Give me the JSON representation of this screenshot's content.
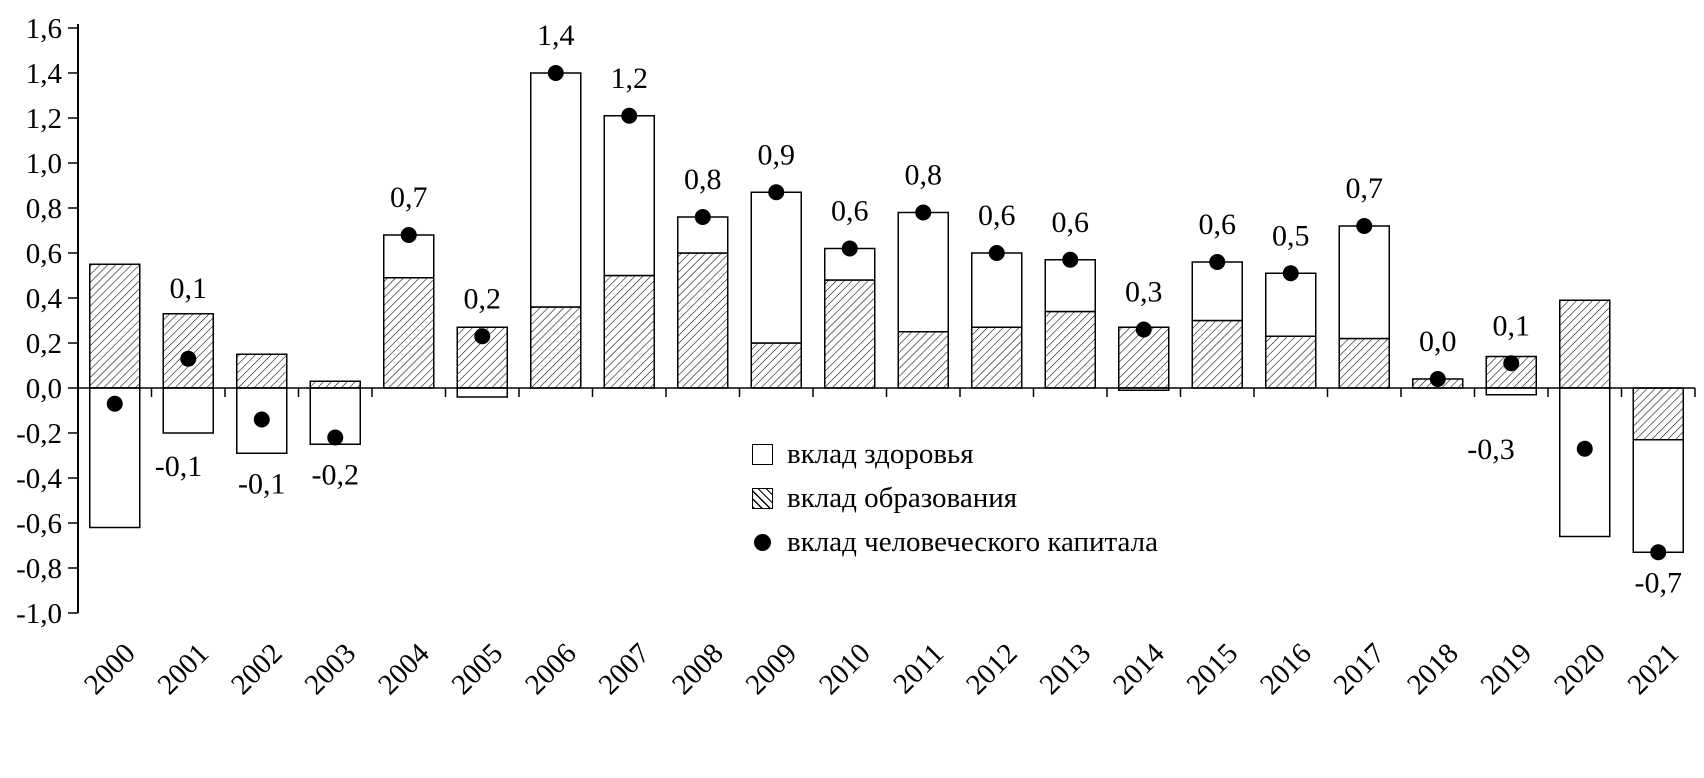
{
  "chart_data": {
    "type": "bar",
    "subtype": "stacked-bars-with-scatter-overlay",
    "title": "",
    "xlabel": "",
    "ylabel": "",
    "ylim": [
      -1.0,
      1.6
    ],
    "ytick_step": 0.2,
    "grid": false,
    "decimal_separator": "comma",
    "legend_position": "inside-center",
    "colors": {
      "bar_outline": "#000000",
      "health_fill": "#ffffff",
      "education_fill": "hatched-diagonal",
      "dot_fill": "#000000",
      "background": "#ffffff"
    },
    "categories": [
      "2000",
      "2001",
      "2002",
      "2003",
      "2004",
      "2005",
      "2006",
      "2007",
      "2008",
      "2009",
      "2010",
      "2011",
      "2012",
      "2013",
      "2014",
      "2015",
      "2016",
      "2017",
      "2018",
      "2019",
      "2020",
      "2021"
    ],
    "yticks": [
      1.6,
      1.4,
      1.2,
      1.0,
      0.8,
      0.6,
      0.4,
      0.2,
      0.0,
      -0.2,
      -0.4,
      -0.6,
      -0.8,
      -1.0
    ],
    "ytick_labels": [
      "1,6",
      "1,4",
      "1,2",
      "1,0",
      "0,8",
      "0,6",
      "0,4",
      "0,2",
      "0,0",
      "-0,2",
      "-0,4",
      "-0,6",
      "-0,8",
      "-1,0"
    ],
    "series": [
      {
        "name": "вклад здоровья",
        "type": "bar",
        "style": "white",
        "values": [
          -0.62,
          -0.2,
          -0.29,
          -0.25,
          0.19,
          -0.04,
          1.04,
          0.71,
          0.16,
          0.67,
          0.14,
          0.53,
          0.33,
          0.23,
          -0.01,
          0.26,
          0.28,
          0.5,
          0.0,
          -0.03,
          -0.66,
          -0.5
        ]
      },
      {
        "name": "вклад образования",
        "type": "bar",
        "style": "hatched",
        "values": [
          0.55,
          0.33,
          0.15,
          0.03,
          0.49,
          0.27,
          0.36,
          0.5,
          0.6,
          0.2,
          0.48,
          0.25,
          0.27,
          0.34,
          0.27,
          0.3,
          0.23,
          0.22,
          0.04,
          0.14,
          0.39,
          -0.23
        ]
      },
      {
        "name": "вклад человеческого капитала",
        "type": "scatter",
        "style": "black-dot",
        "values": [
          -0.07,
          0.13,
          -0.14,
          -0.22,
          0.68,
          0.23,
          1.4,
          1.21,
          0.76,
          0.87,
          0.62,
          0.78,
          0.6,
          0.57,
          0.26,
          0.56,
          0.51,
          0.72,
          0.04,
          0.11,
          -0.27,
          -0.73
        ],
        "labels": [
          "-0,1",
          "0,1",
          "-0,1",
          "-0,2",
          "0,7",
          "0,2",
          "1,4",
          "1,2",
          "0,8",
          "0,9",
          "0,6",
          "0,8",
          "0,6",
          "0,6",
          "0,3",
          "0,6",
          "0,5",
          "0,7",
          "0,0",
          "0,1",
          "-0,3",
          "-0,7"
        ],
        "label_placement": [
          "below-right",
          "above",
          "below",
          "below",
          "above",
          "above",
          "above",
          "above",
          "above",
          "above",
          "above",
          "above",
          "above",
          "above",
          "above",
          "above",
          "above",
          "above",
          "above",
          "above",
          "left",
          "below"
        ]
      }
    ]
  }
}
